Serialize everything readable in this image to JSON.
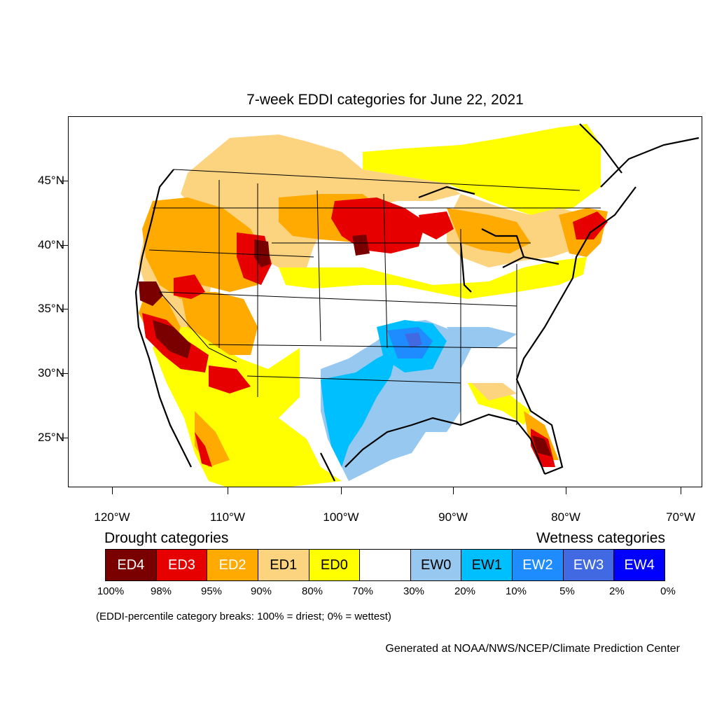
{
  "title": "7-week EDDI categories for June 22, 2021",
  "y_axis": {
    "labels": [
      "45°N",
      "40°N",
      "35°N",
      "30°N",
      "25°N"
    ]
  },
  "x_axis": {
    "labels": [
      "120°W",
      "110°W",
      "100°W",
      "90°W",
      "80°W",
      "70°W"
    ]
  },
  "legend": {
    "drought_heading": "Drought categories",
    "wetness_heading": "Wetness categories",
    "categories": [
      {
        "label": "ED4",
        "color": "#7a0000",
        "text_color": "#ffffff"
      },
      {
        "label": "ED3",
        "color": "#e60000",
        "text_color": "#ffffff"
      },
      {
        "label": "ED2",
        "color": "#ffaa00",
        "text_color": "#ffffff"
      },
      {
        "label": "ED1",
        "color": "#fcd37f",
        "text_color": "#000000"
      },
      {
        "label": "ED0",
        "color": "#ffff00",
        "text_color": "#000000"
      },
      {
        "label": "",
        "color": "#ffffff",
        "text_color": "#000000"
      },
      {
        "label": "EW0",
        "color": "#96c8f0",
        "text_color": "#000000"
      },
      {
        "label": "EW1",
        "color": "#00bfff",
        "text_color": "#000000"
      },
      {
        "label": "EW2",
        "color": "#1e8cff",
        "text_color": "#ffffff"
      },
      {
        "label": "EW3",
        "color": "#4169e1",
        "text_color": "#ffffff"
      },
      {
        "label": "EW4",
        "color": "#0000ff",
        "text_color": "#ffffff"
      }
    ],
    "percentiles": [
      "100%",
      "98%",
      "95%",
      "90%",
      "80%",
      "70%",
      "30%",
      "20%",
      "10%",
      "5%",
      "2%",
      "0%"
    ]
  },
  "note": "(EDDI-percentile category breaks: 100% = driest; 0% = wettest)",
  "credit": "Generated at NOAA/NWS/NCEP/Climate Prediction Center"
}
